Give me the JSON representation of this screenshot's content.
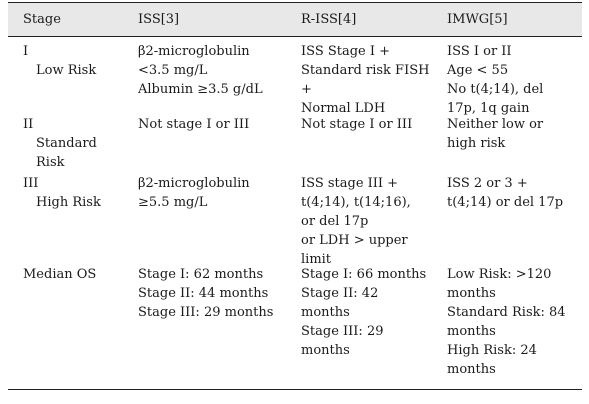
{
  "headers": [
    "Stage",
    "ISS[3]",
    "R-ISS[4]",
    "IMWG[5]"
  ],
  "rows": [
    {
      "stage": [
        "I",
        "Low Risk"
      ],
      "iss": [
        "β2-microglobulin",
        "<3.5 mg/L",
        "Albumin ≥3.5 g/dL"
      ],
      "riss": [
        "ISS Stage I +",
        "Standard risk FISH",
        "+",
        "Normal LDH"
      ],
      "imwg": [
        "ISS I or II",
        "Age < 55",
        "No t(4;14), del",
        "17p, 1q gain"
      ]
    },
    {
      "stage": [
        "II",
        "Standard",
        "Risk"
      ],
      "iss": [
        "Not stage I or III"
      ],
      "riss": [
        "Not stage I or III"
      ],
      "imwg": [
        "Neither low or",
        "high risk"
      ]
    },
    {
      "stage": [
        "III",
        "High Risk"
      ],
      "iss": [
        "β2-microglobulin",
        "≥5.5 mg/L"
      ],
      "riss": [
        "ISS stage III +",
        "t(4;14), t(14;16),",
        "or del 17p",
        "or LDH > upper",
        "limit"
      ],
      "imwg": [
        "ISS 2 or 3 +",
        "t(4;14) or del 17p"
      ]
    },
    {
      "stage": [
        "Median OS"
      ],
      "iss": [
        "Stage I: 62 months",
        "Stage II: 44 months",
        "Stage III: 29 months"
      ],
      "riss": [
        "Stage I: 66 months",
        "Stage II: 42",
        "months",
        "Stage III: 29",
        "months"
      ],
      "imwg": [
        "Low Risk: >120",
        "months",
        "Standard Risk: 84",
        "months",
        "High Risk: 24",
        "months"
      ]
    }
  ]
}
